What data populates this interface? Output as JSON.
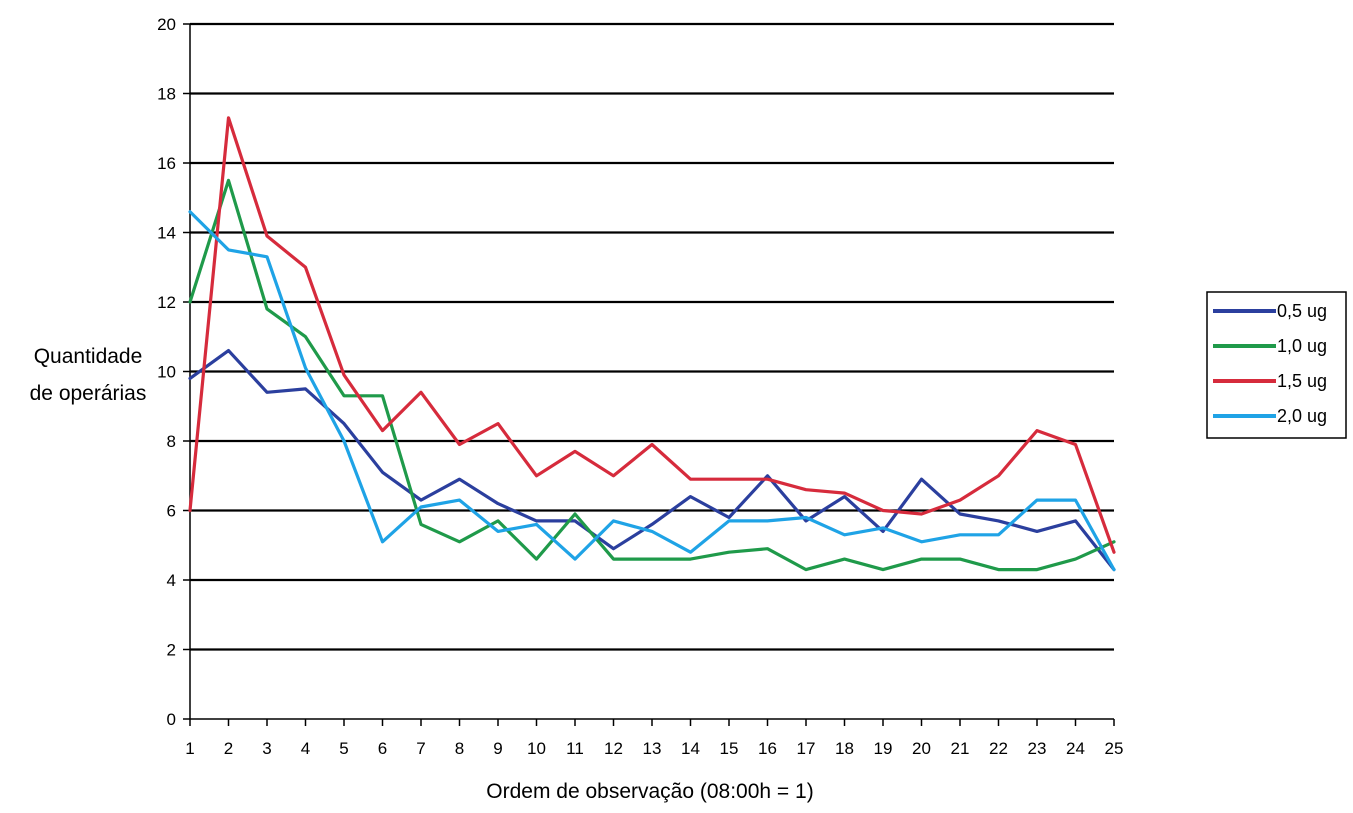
{
  "chart_data": {
    "type": "line",
    "title": "",
    "xlabel": "Ordem de observação (08:00h = 1)",
    "ylabel_lines": [
      "Quantidade",
      "de operárias"
    ],
    "x": [
      1,
      2,
      3,
      4,
      5,
      6,
      7,
      8,
      9,
      10,
      11,
      12,
      13,
      14,
      15,
      16,
      17,
      18,
      19,
      20,
      21,
      22,
      23,
      24,
      25
    ],
    "x_tick_labels": [
      "1",
      "2",
      "3",
      "4",
      "5",
      "6",
      "7",
      "8",
      "9",
      "10",
      "11",
      "12",
      "13",
      "14",
      "15",
      "16",
      "17",
      "18",
      "19",
      "20",
      "21",
      "22",
      "23",
      "24",
      "25"
    ],
    "ylim": [
      0,
      20
    ],
    "y_ticks": [
      0,
      2,
      4,
      6,
      8,
      10,
      12,
      14,
      16,
      18,
      20
    ],
    "y_tick_labels": [
      "0",
      "2",
      "4",
      "6",
      "8",
      "10",
      "12",
      "14",
      "16",
      "18",
      "20"
    ],
    "grid": true,
    "legend_position": "right",
    "series": [
      {
        "name": "0,5 ug",
        "color": "#2b3f9e",
        "values": [
          9.8,
          10.6,
          9.4,
          9.5,
          8.5,
          7.1,
          6.3,
          6.9,
          6.2,
          5.7,
          5.7,
          4.9,
          5.6,
          6.4,
          5.8,
          7.0,
          5.7,
          6.4,
          5.4,
          6.9,
          5.9,
          5.7,
          5.4,
          5.7,
          4.3
        ]
      },
      {
        "name": "1,0 ug",
        "color": "#1f9a4a",
        "values": [
          12.0,
          15.5,
          11.8,
          11.0,
          9.3,
          9.3,
          5.6,
          5.1,
          5.7,
          4.6,
          5.9,
          4.6,
          4.6,
          4.6,
          4.8,
          4.9,
          4.3,
          4.6,
          4.3,
          4.6,
          4.6,
          4.3,
          4.3,
          4.6,
          5.1
        ]
      },
      {
        "name": "1,5 ug",
        "color": "#d62b3c",
        "values": [
          6.0,
          17.3,
          13.9,
          13.0,
          9.9,
          8.3,
          9.4,
          7.9,
          8.5,
          7.0,
          7.7,
          7.0,
          7.9,
          6.9,
          6.9,
          6.9,
          6.6,
          6.5,
          6.0,
          5.9,
          6.3,
          7.0,
          8.3,
          7.9,
          4.8
        ]
      },
      {
        "name": "2,0 ug",
        "color": "#1fa3e6",
        "values": [
          14.6,
          13.5,
          13.3,
          10.1,
          8.0,
          5.1,
          6.1,
          6.3,
          5.4,
          5.6,
          4.6,
          5.7,
          5.4,
          4.8,
          5.7,
          5.7,
          5.8,
          5.3,
          5.5,
          5.1,
          5.3,
          5.3,
          6.3,
          6.3,
          4.3
        ]
      }
    ]
  }
}
